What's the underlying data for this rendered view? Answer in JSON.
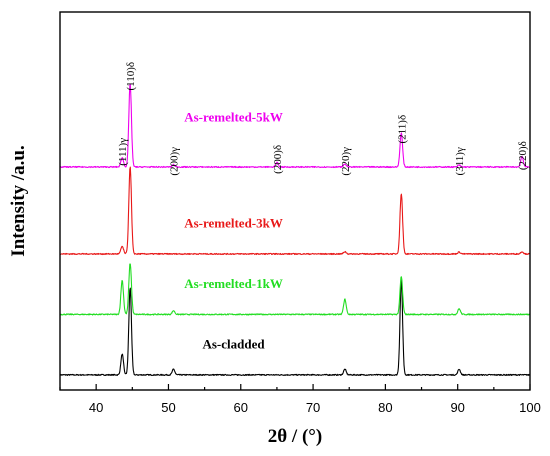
{
  "chart_data": {
    "type": "line",
    "title": "",
    "xlabel": "2θ / (°)",
    "ylabel": "Intensity /a.u.",
    "xlim": [
      35,
      100
    ],
    "ylim": [
      0,
      100
    ],
    "x_ticks": [
      40,
      50,
      60,
      70,
      80,
      90,
      100
    ],
    "x_tick_labels": [
      "40",
      "50",
      "60",
      "70",
      "80",
      "90",
      "100"
    ],
    "y_ticks_shown": false,
    "grid": false,
    "legend": "inline labels above each trace",
    "series": [
      {
        "name": "As-cladded",
        "color": "#000000",
        "baseline": 4,
        "noise": 0.15,
        "peaks": [
          {
            "x": 43.6,
            "h": 5.5
          },
          {
            "x": 44.7,
            "h": 23
          },
          {
            "x": 50.7,
            "h": 1.5
          },
          {
            "x": 74.4,
            "h": 1.5
          },
          {
            "x": 82.2,
            "h": 25
          },
          {
            "x": 90.2,
            "h": 1.5
          }
        ]
      },
      {
        "name": "As-remelted-1kW",
        "color": "#22dd22",
        "baseline": 20,
        "noise": 0.15,
        "peaks": [
          {
            "x": 43.6,
            "h": 9
          },
          {
            "x": 44.7,
            "h": 13.5
          },
          {
            "x": 50.7,
            "h": 1
          },
          {
            "x": 74.4,
            "h": 4
          },
          {
            "x": 82.2,
            "h": 10
          },
          {
            "x": 90.2,
            "h": 1.5
          }
        ]
      },
      {
        "name": "As-remelted-3kW",
        "color": "#e81818",
        "baseline": 36,
        "noise": 0.15,
        "peaks": [
          {
            "x": 43.6,
            "h": 2
          },
          {
            "x": 44.7,
            "h": 23
          },
          {
            "x": 74.4,
            "h": 0.6
          },
          {
            "x": 82.2,
            "h": 16
          },
          {
            "x": 90.2,
            "h": 0.5
          },
          {
            "x": 98.9,
            "h": 0.6
          }
        ]
      },
      {
        "name": "As-remelted-5kW",
        "color": "#ee00ee",
        "baseline": 59,
        "noise": 0.15,
        "peaks": [
          {
            "x": 43.6,
            "h": 2.5
          },
          {
            "x": 44.7,
            "h": 22
          },
          {
            "x": 50.7,
            "h": 0.6
          },
          {
            "x": 65.0,
            "h": 1.2
          },
          {
            "x": 74.4,
            "h": 0.8
          },
          {
            "x": 82.2,
            "h": 9
          },
          {
            "x": 90.2,
            "h": 0.5
          },
          {
            "x": 98.9,
            "h": 2.8
          }
        ]
      }
    ],
    "peak_labels": [
      {
        "x": 43.6,
        "text": "(111)γ",
        "y": 63
      },
      {
        "x": 44.7,
        "text": "(110)δ",
        "y": 83
      },
      {
        "x": 50.7,
        "text": "(200)γ",
        "y": 60.5
      },
      {
        "x": 65.0,
        "text": "(200)δ",
        "y": 61
      },
      {
        "x": 74.4,
        "text": "(220)γ",
        "y": 60.5
      },
      {
        "x": 82.2,
        "text": "(211)δ",
        "y": 69
      },
      {
        "x": 90.2,
        "text": "(311)γ",
        "y": 60.5
      },
      {
        "x": 98.9,
        "text": "(220)δ",
        "y": 62
      }
    ],
    "series_labels": [
      {
        "text": "As-remelted-5kW",
        "color": "#ee00ee",
        "x": 59,
        "y": 71
      },
      {
        "text": "As-remelted-3kW",
        "color": "#e81818",
        "x": 59,
        "y": 43
      },
      {
        "text": "As-remelted-1kW",
        "color": "#22dd22",
        "x": 59,
        "y": 27
      },
      {
        "text": "As-cladded",
        "color": "#000000",
        "x": 59,
        "y": 11
      }
    ]
  }
}
